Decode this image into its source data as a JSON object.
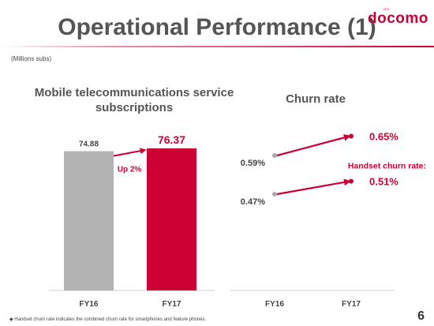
{
  "slide": {
    "title": "Operational Performance (1)",
    "brand": "docomo",
    "brand_sup": "NTT",
    "units_note": "(Millions subs)",
    "footnote": "Handset churn rate indicates the combined churn rate for smartphones and feature phones.",
    "page_number": "6"
  },
  "colors": {
    "accent": "#cc0033",
    "gray_bar": "#b3b3b3",
    "gray_text": "#555555"
  },
  "chart_data": [
    {
      "type": "bar",
      "title": "Mobile telecommunications service subscriptions",
      "categories": [
        "FY16",
        "FY17"
      ],
      "values": [
        74.88,
        76.37
      ],
      "value_labels": [
        "74.88",
        "76.37"
      ],
      "annotation": "Up 2%",
      "units": "(Millions subs)"
    },
    {
      "type": "line",
      "title": "Churn rate",
      "categories": [
        "FY16",
        "FY17"
      ],
      "series": [
        {
          "values": [
            0.59,
            0.65
          ],
          "labels": [
            "0.59%",
            "0.65%"
          ]
        },
        {
          "name": "Handset churn rate:",
          "values": [
            0.47,
            0.51
          ],
          "labels": [
            "0.47%",
            "0.51%"
          ]
        }
      ]
    }
  ]
}
